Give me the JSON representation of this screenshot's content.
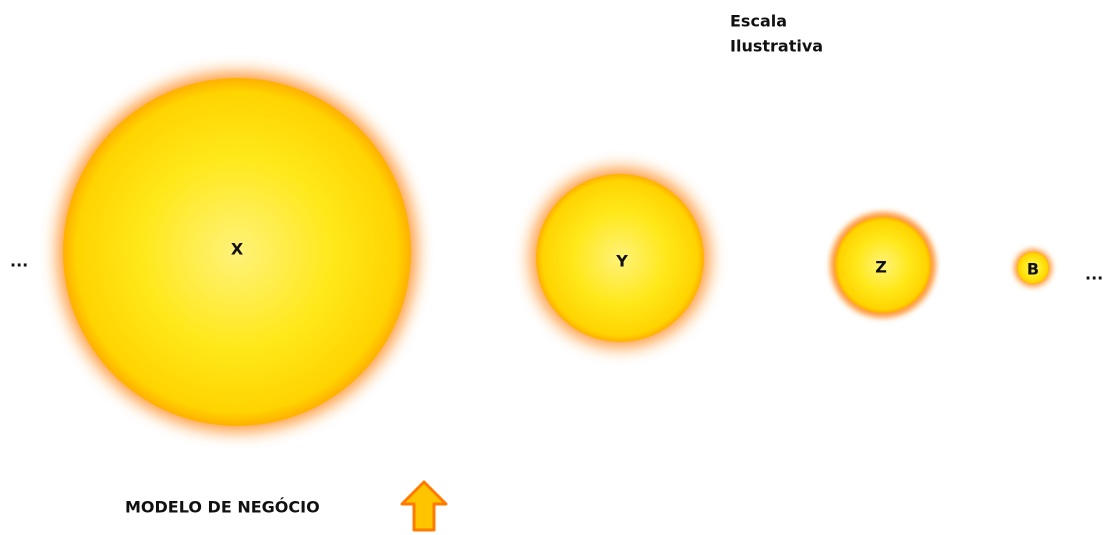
{
  "scale_note": {
    "line1": "Escala",
    "line2": "Ilustrativa"
  },
  "circles": [
    {
      "label": "X"
    },
    {
      "label": "Y"
    },
    {
      "label": "Z"
    },
    {
      "label": "B"
    }
  ],
  "ellipsis_left": "...",
  "ellipsis_right": "...",
  "caption": "MODELO DE NEGÓCIO"
}
